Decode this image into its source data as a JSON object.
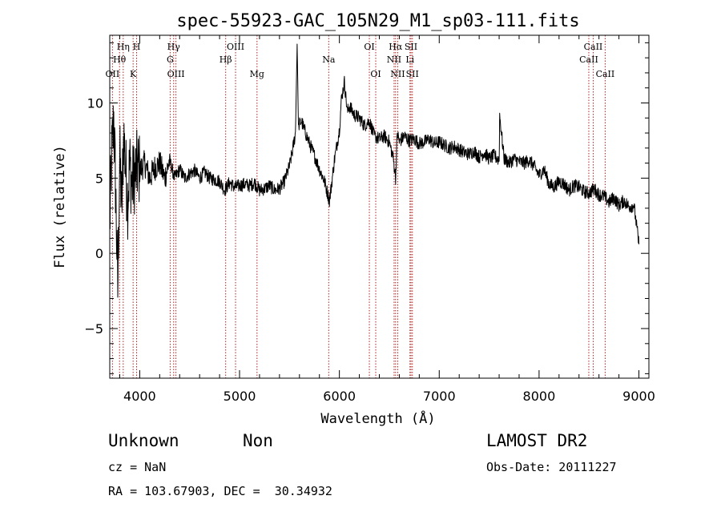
{
  "chart_data": {
    "type": "line",
    "title": "spec-55923-GAC_105N29_M1_sp03-111.fits",
    "xlabel": "Wavelength (Å)",
    "ylabel": "Flux (relative)",
    "xlim": [
      3700,
      9100
    ],
    "ylim": [
      -8.3,
      14.5
    ],
    "xticks": [
      4000,
      5000,
      6000,
      7000,
      8000,
      9000
    ],
    "yticks": [
      -5,
      0,
      5,
      10
    ],
    "grid": false,
    "series": [
      {
        "name": "",
        "color": "#000000",
        "x": [
          3700,
          3720,
          3740,
          3760,
          3780,
          3800,
          3820,
          3840,
          3860,
          3880,
          3900,
          3920,
          3950,
          3980,
          4000,
          4050,
          4100,
          4150,
          4200,
          4250,
          4300,
          4350,
          4400,
          4450,
          4500,
          4550,
          4600,
          4650,
          4700,
          4750,
          4800,
          4850,
          4900,
          4950,
          5000,
          5050,
          5100,
          5150,
          5200,
          5250,
          5300,
          5350,
          5400,
          5450,
          5500,
          5530,
          5560,
          5577,
          5590,
          5620,
          5650,
          5700,
          5750,
          5800,
          5850,
          5900,
          5920,
          5950,
          6000,
          6020,
          6050,
          6080,
          6100,
          6150,
          6200,
          6250,
          6300,
          6350,
          6400,
          6450,
          6500,
          6540,
          6563,
          6580,
          6600,
          6650,
          6700,
          6750,
          6800,
          6850,
          6900,
          6950,
          7000,
          7050,
          7100,
          7150,
          7200,
          7250,
          7300,
          7350,
          7400,
          7450,
          7500,
          7550,
          7600,
          7605,
          7650,
          7700,
          7750,
          7800,
          7850,
          7900,
          7950,
          8000,
          8050,
          8100,
          8150,
          8200,
          8250,
          8300,
          8350,
          8400,
          8450,
          8500,
          8550,
          8600,
          8650,
          8700,
          8750,
          8800,
          8850,
          8900,
          8950,
          9000
        ],
        "y": [
          2.0,
          6.5,
          9.0,
          4.0,
          -2.5,
          6.5,
          3.0,
          8.0,
          5.5,
          3.5,
          6.0,
          4.5,
          5.2,
          5.8,
          5.5,
          6.0,
          5.0,
          5.7,
          6.0,
          5.0,
          6.2,
          5.0,
          5.6,
          5.0,
          5.3,
          5.5,
          5.0,
          5.4,
          5.0,
          4.9,
          4.8,
          4.2,
          4.7,
          4.4,
          4.5,
          4.6,
          4.5,
          4.7,
          4.2,
          4.3,
          4.5,
          4.2,
          4.3,
          4.8,
          5.8,
          6.8,
          8.0,
          14.0,
          8.5,
          8.8,
          8.2,
          7.3,
          6.5,
          5.6,
          4.8,
          3.5,
          4.5,
          6.2,
          8.2,
          10.2,
          11.4,
          9.4,
          9.8,
          9.2,
          9.0,
          8.5,
          8.8,
          7.8,
          7.6,
          7.8,
          7.4,
          6.3,
          5.0,
          8.0,
          7.4,
          7.8,
          7.5,
          7.6,
          7.3,
          7.4,
          7.6,
          7.3,
          7.4,
          7.2,
          7.0,
          7.1,
          6.9,
          6.7,
          6.6,
          6.8,
          6.4,
          6.7,
          6.3,
          6.5,
          6.2,
          9.2,
          6.3,
          6.0,
          6.3,
          6.1,
          6.0,
          6.2,
          5.8,
          5.2,
          5.6,
          4.6,
          4.4,
          4.8,
          4.6,
          4.2,
          4.5,
          4.4,
          4.1,
          4.0,
          4.3,
          3.9,
          3.8,
          3.4,
          3.7,
          3.2,
          3.5,
          3.1,
          3.2,
          0.6
        ]
      }
    ],
    "lines": [
      {
        "label": "OII",
        "x": 3727,
        "row": 3
      },
      {
        "label": "Hη",
        "x": 3835,
        "row": 1
      },
      {
        "label": "Hθ",
        "x": 3798,
        "row": 2
      },
      {
        "label": "K",
        "x": 3934,
        "row": 3
      },
      {
        "label": "H",
        "x": 3969,
        "row": 1
      },
      {
        "label": "Hγ",
        "x": 4340,
        "row": 1
      },
      {
        "label": "G",
        "x": 4305,
        "row": 2
      },
      {
        "label": "OIII",
        "x": 4363,
        "row": 3
      },
      {
        "label": "OIII",
        "x": 4960,
        "row": 1
      },
      {
        "label": "Hβ",
        "x": 4861,
        "row": 2
      },
      {
        "label": "Mg",
        "x": 5175,
        "row": 3
      },
      {
        "label": "Na",
        "x": 5893,
        "row": 2
      },
      {
        "label": "OI",
        "x": 6300,
        "row": 1
      },
      {
        "label": "OI",
        "x": 6364,
        "row": 3
      },
      {
        "label": "Hα",
        "x": 6563,
        "row": 1
      },
      {
        "label": "NII",
        "x": 6548,
        "row": 2
      },
      {
        "label": "NII",
        "x": 6584,
        "row": 3
      },
      {
        "label": "SII",
        "x": 6717,
        "row": 1
      },
      {
        "label": "Li",
        "x": 6707,
        "row": 2
      },
      {
        "label": "SII",
        "x": 6731,
        "row": 3
      },
      {
        "label": "CaII",
        "x": 8542,
        "row": 1
      },
      {
        "label": "CaII",
        "x": 8498,
        "row": 2
      },
      {
        "label": "CaII",
        "x": 8662,
        "row": 3
      }
    ]
  },
  "footer": {
    "object_class": "Unknown",
    "object_subclass": "Non",
    "survey": "LAMOST DR2",
    "redshift": "cz = NaN",
    "obs_date": "Obs-Date: 20111227",
    "coordinates": "RA = 103.67903, DEC =  30.34932"
  }
}
